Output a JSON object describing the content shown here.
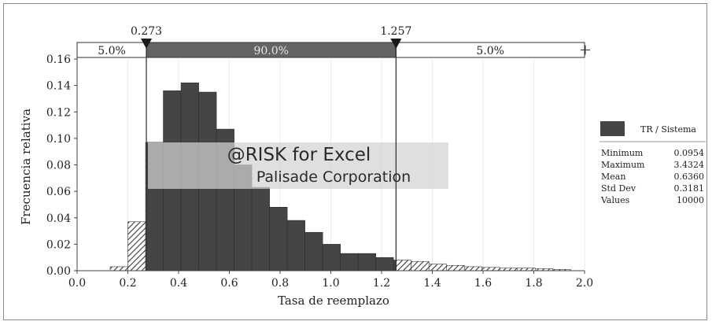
{
  "chart_data": {
    "type": "bar",
    "xlabel": "Tasa de reemplazo",
    "ylabel": "Frecuencia relativa",
    "xlim": [
      0.0,
      2.0
    ],
    "ylim": [
      0.0,
      0.16
    ],
    "xticks": [
      "0.0",
      "0.2",
      "0.4",
      "0.6",
      "0.8",
      "1.0",
      "1.2",
      "1.4",
      "1.6",
      "1.8",
      "2.0"
    ],
    "yticks": [
      "0.00",
      "0.02",
      "0.04",
      "0.06",
      "0.08",
      "0.10",
      "0.12",
      "0.14",
      "0.16"
    ],
    "bin_width": 0.0698,
    "bins": [
      {
        "x": 0.1303,
        "y": 0.003
      },
      {
        "x": 0.2001,
        "y": 0.037
      },
      {
        "x": 0.2699,
        "y": 0.097
      },
      {
        "x": 0.3397,
        "y": 0.136
      },
      {
        "x": 0.4095,
        "y": 0.142
      },
      {
        "x": 0.4793,
        "y": 0.135
      },
      {
        "x": 0.5491,
        "y": 0.107
      },
      {
        "x": 0.6189,
        "y": 0.08
      },
      {
        "x": 0.6887,
        "y": 0.063
      },
      {
        "x": 0.7585,
        "y": 0.048
      },
      {
        "x": 0.8283,
        "y": 0.038
      },
      {
        "x": 0.8981,
        "y": 0.029
      },
      {
        "x": 0.9679,
        "y": 0.02
      },
      {
        "x": 1.0377,
        "y": 0.013
      },
      {
        "x": 1.1075,
        "y": 0.013
      },
      {
        "x": 1.1773,
        "y": 0.01
      },
      {
        "x": 1.2471,
        "y": 0.008
      },
      {
        "x": 1.3169,
        "y": 0.007
      },
      {
        "x": 1.3867,
        "y": 0.005
      },
      {
        "x": 1.4565,
        "y": 0.004
      },
      {
        "x": 1.5263,
        "y": 0.003
      },
      {
        "x": 1.5961,
        "y": 0.0025
      },
      {
        "x": 1.6659,
        "y": 0.002
      },
      {
        "x": 1.7357,
        "y": 0.002
      },
      {
        "x": 1.8055,
        "y": 0.0015
      },
      {
        "x": 1.8753,
        "y": 0.001
      }
    ],
    "lower_marker": {
      "value": 0.273,
      "label": "0.273"
    },
    "upper_marker": {
      "value": 1.257,
      "label": "1.257"
    },
    "bands": [
      {
        "label": "5.0%",
        "from": 0.0,
        "to": 0.273
      },
      {
        "label": "90.0%",
        "from": 0.273,
        "to": 1.257
      },
      {
        "label": "5.0%",
        "from": 1.257,
        "to": 2.0
      }
    ],
    "colors": {
      "bar": "#454545",
      "band_middle": "#646464",
      "hatch": "#3a3a3a",
      "watermark": "#d2d2d2"
    }
  },
  "legend": {
    "series_name": "TR / Sistema",
    "placement": "right",
    "stats": [
      {
        "label": "Minimum",
        "value": "0.0954"
      },
      {
        "label": "Maximum",
        "value": "3.4324"
      },
      {
        "label": "Mean",
        "value": "0.6360"
      },
      {
        "label": "Std Dev",
        "value": "0.3181"
      },
      {
        "label": "Values",
        "value": "10000"
      }
    ]
  },
  "watermark": {
    "line1": "@RISK for Excel",
    "line2": "Palisade Corporation"
  }
}
